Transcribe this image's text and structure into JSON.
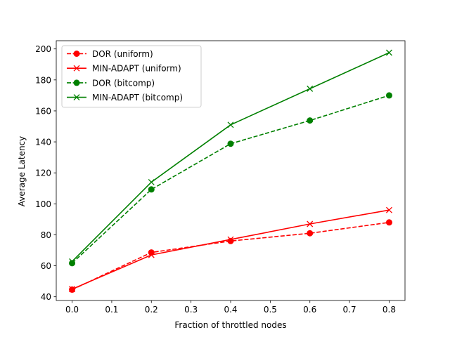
{
  "chart_data": {
    "type": "line",
    "title": "",
    "xlabel": "Fraction of throttled nodes",
    "ylabel": "Average Latency",
    "x": [
      0.0,
      0.2,
      0.4,
      0.6,
      0.8
    ],
    "xlim": [
      -0.04,
      0.84
    ],
    "ylim": [
      37.6,
      205.3
    ],
    "xticks": [
      0.0,
      0.1,
      0.2,
      0.3,
      0.4,
      0.5,
      0.6,
      0.7,
      0.8
    ],
    "xtick_labels": [
      "0.0",
      "0.1",
      "0.2",
      "0.3",
      "0.4",
      "0.5",
      "0.6",
      "0.7",
      "0.8"
    ],
    "yticks": [
      40,
      60,
      80,
      100,
      120,
      140,
      160,
      180,
      200
    ],
    "ytick_labels": [
      "40",
      "60",
      "80",
      "100",
      "120",
      "140",
      "160",
      "180",
      "200"
    ],
    "grid": false,
    "legend_position": "top-left",
    "series": [
      {
        "name": "DOR (uniform)",
        "values": [
          44.6,
          68.6,
          76.0,
          81.0,
          88.0
        ],
        "color": "#ff0000",
        "linestyle": "dashed",
        "marker": "circle"
      },
      {
        "name": "MIN-ADAPT (uniform)",
        "values": [
          44.9,
          67.0,
          77.0,
          87.0,
          96.0
        ],
        "color": "#ff0000",
        "linestyle": "solid",
        "marker": "x"
      },
      {
        "name": "DOR (bitcomp)",
        "values": [
          61.7,
          109.3,
          138.8,
          153.8,
          170.0
        ],
        "color": "#008000",
        "linestyle": "dashed",
        "marker": "circle"
      },
      {
        "name": "MIN-ADAPT (bitcomp)",
        "values": [
          62.8,
          114.0,
          151.0,
          174.3,
          197.6
        ],
        "color": "#008000",
        "linestyle": "solid",
        "marker": "x"
      }
    ]
  }
}
